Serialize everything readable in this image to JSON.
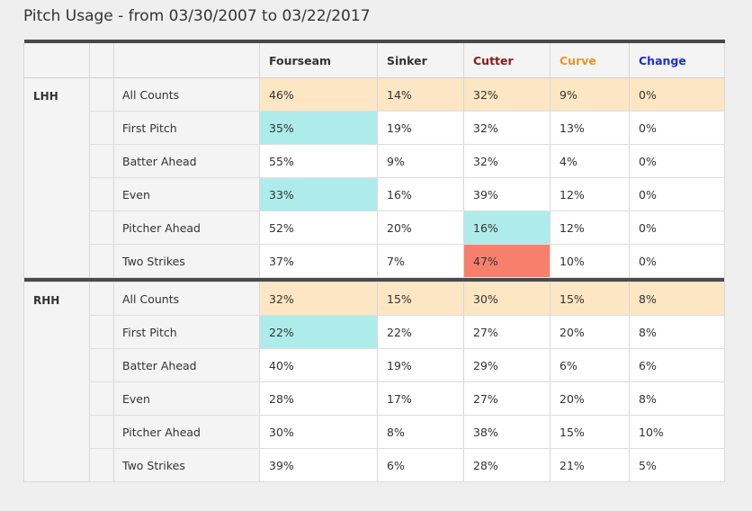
{
  "title": "Pitch Usage - from 03/30/2007 to 03/22/2017",
  "colors": {
    "fourseam": "#333333",
    "sinker": "#333333",
    "cutter": "#8b1a1a",
    "curve": "#f0931e",
    "change": "#1a2fd6",
    "all_counts_row": "#fde6c4",
    "highlight_low": "#aeeceb",
    "highlight_high": "#f7806d"
  },
  "columns": [
    "Fourseam",
    "Sinker",
    "Cutter",
    "Curve",
    "Change"
  ],
  "groups": [
    {
      "side": "LHH",
      "rows": [
        {
          "label": "All Counts",
          "values": [
            "46%",
            "14%",
            "32%",
            "9%",
            "0%"
          ],
          "highlight": []
        },
        {
          "label": "First Pitch",
          "values": [
            "35%",
            "19%",
            "32%",
            "13%",
            "0%"
          ],
          "highlight": [
            "cyan",
            "",
            "",
            "",
            ""
          ]
        },
        {
          "label": "Batter Ahead",
          "values": [
            "55%",
            "9%",
            "32%",
            "4%",
            "0%"
          ],
          "highlight": []
        },
        {
          "label": "Even",
          "values": [
            "33%",
            "16%",
            "39%",
            "12%",
            "0%"
          ],
          "highlight": [
            "cyan",
            "",
            "",
            "",
            ""
          ]
        },
        {
          "label": "Pitcher Ahead",
          "values": [
            "52%",
            "20%",
            "16%",
            "12%",
            "0%"
          ],
          "highlight": [
            "",
            "",
            "cyan",
            "",
            ""
          ]
        },
        {
          "label": "Two Strikes",
          "values": [
            "37%",
            "7%",
            "47%",
            "10%",
            "0%"
          ],
          "highlight": [
            "",
            "",
            "red",
            "",
            ""
          ]
        }
      ]
    },
    {
      "side": "RHH",
      "rows": [
        {
          "label": "All Counts",
          "values": [
            "32%",
            "15%",
            "30%",
            "15%",
            "8%"
          ],
          "highlight": []
        },
        {
          "label": "First Pitch",
          "values": [
            "22%",
            "22%",
            "27%",
            "20%",
            "8%"
          ],
          "highlight": [
            "cyan",
            "",
            "",
            "",
            ""
          ]
        },
        {
          "label": "Batter Ahead",
          "values": [
            "40%",
            "19%",
            "29%",
            "6%",
            "6%"
          ],
          "highlight": []
        },
        {
          "label": "Even",
          "values": [
            "28%",
            "17%",
            "27%",
            "20%",
            "8%"
          ],
          "highlight": []
        },
        {
          "label": "Pitcher Ahead",
          "values": [
            "30%",
            "8%",
            "38%",
            "15%",
            "10%"
          ],
          "highlight": []
        },
        {
          "label": "Two Strikes",
          "values": [
            "39%",
            "6%",
            "28%",
            "21%",
            "5%"
          ],
          "highlight": []
        }
      ]
    }
  ]
}
